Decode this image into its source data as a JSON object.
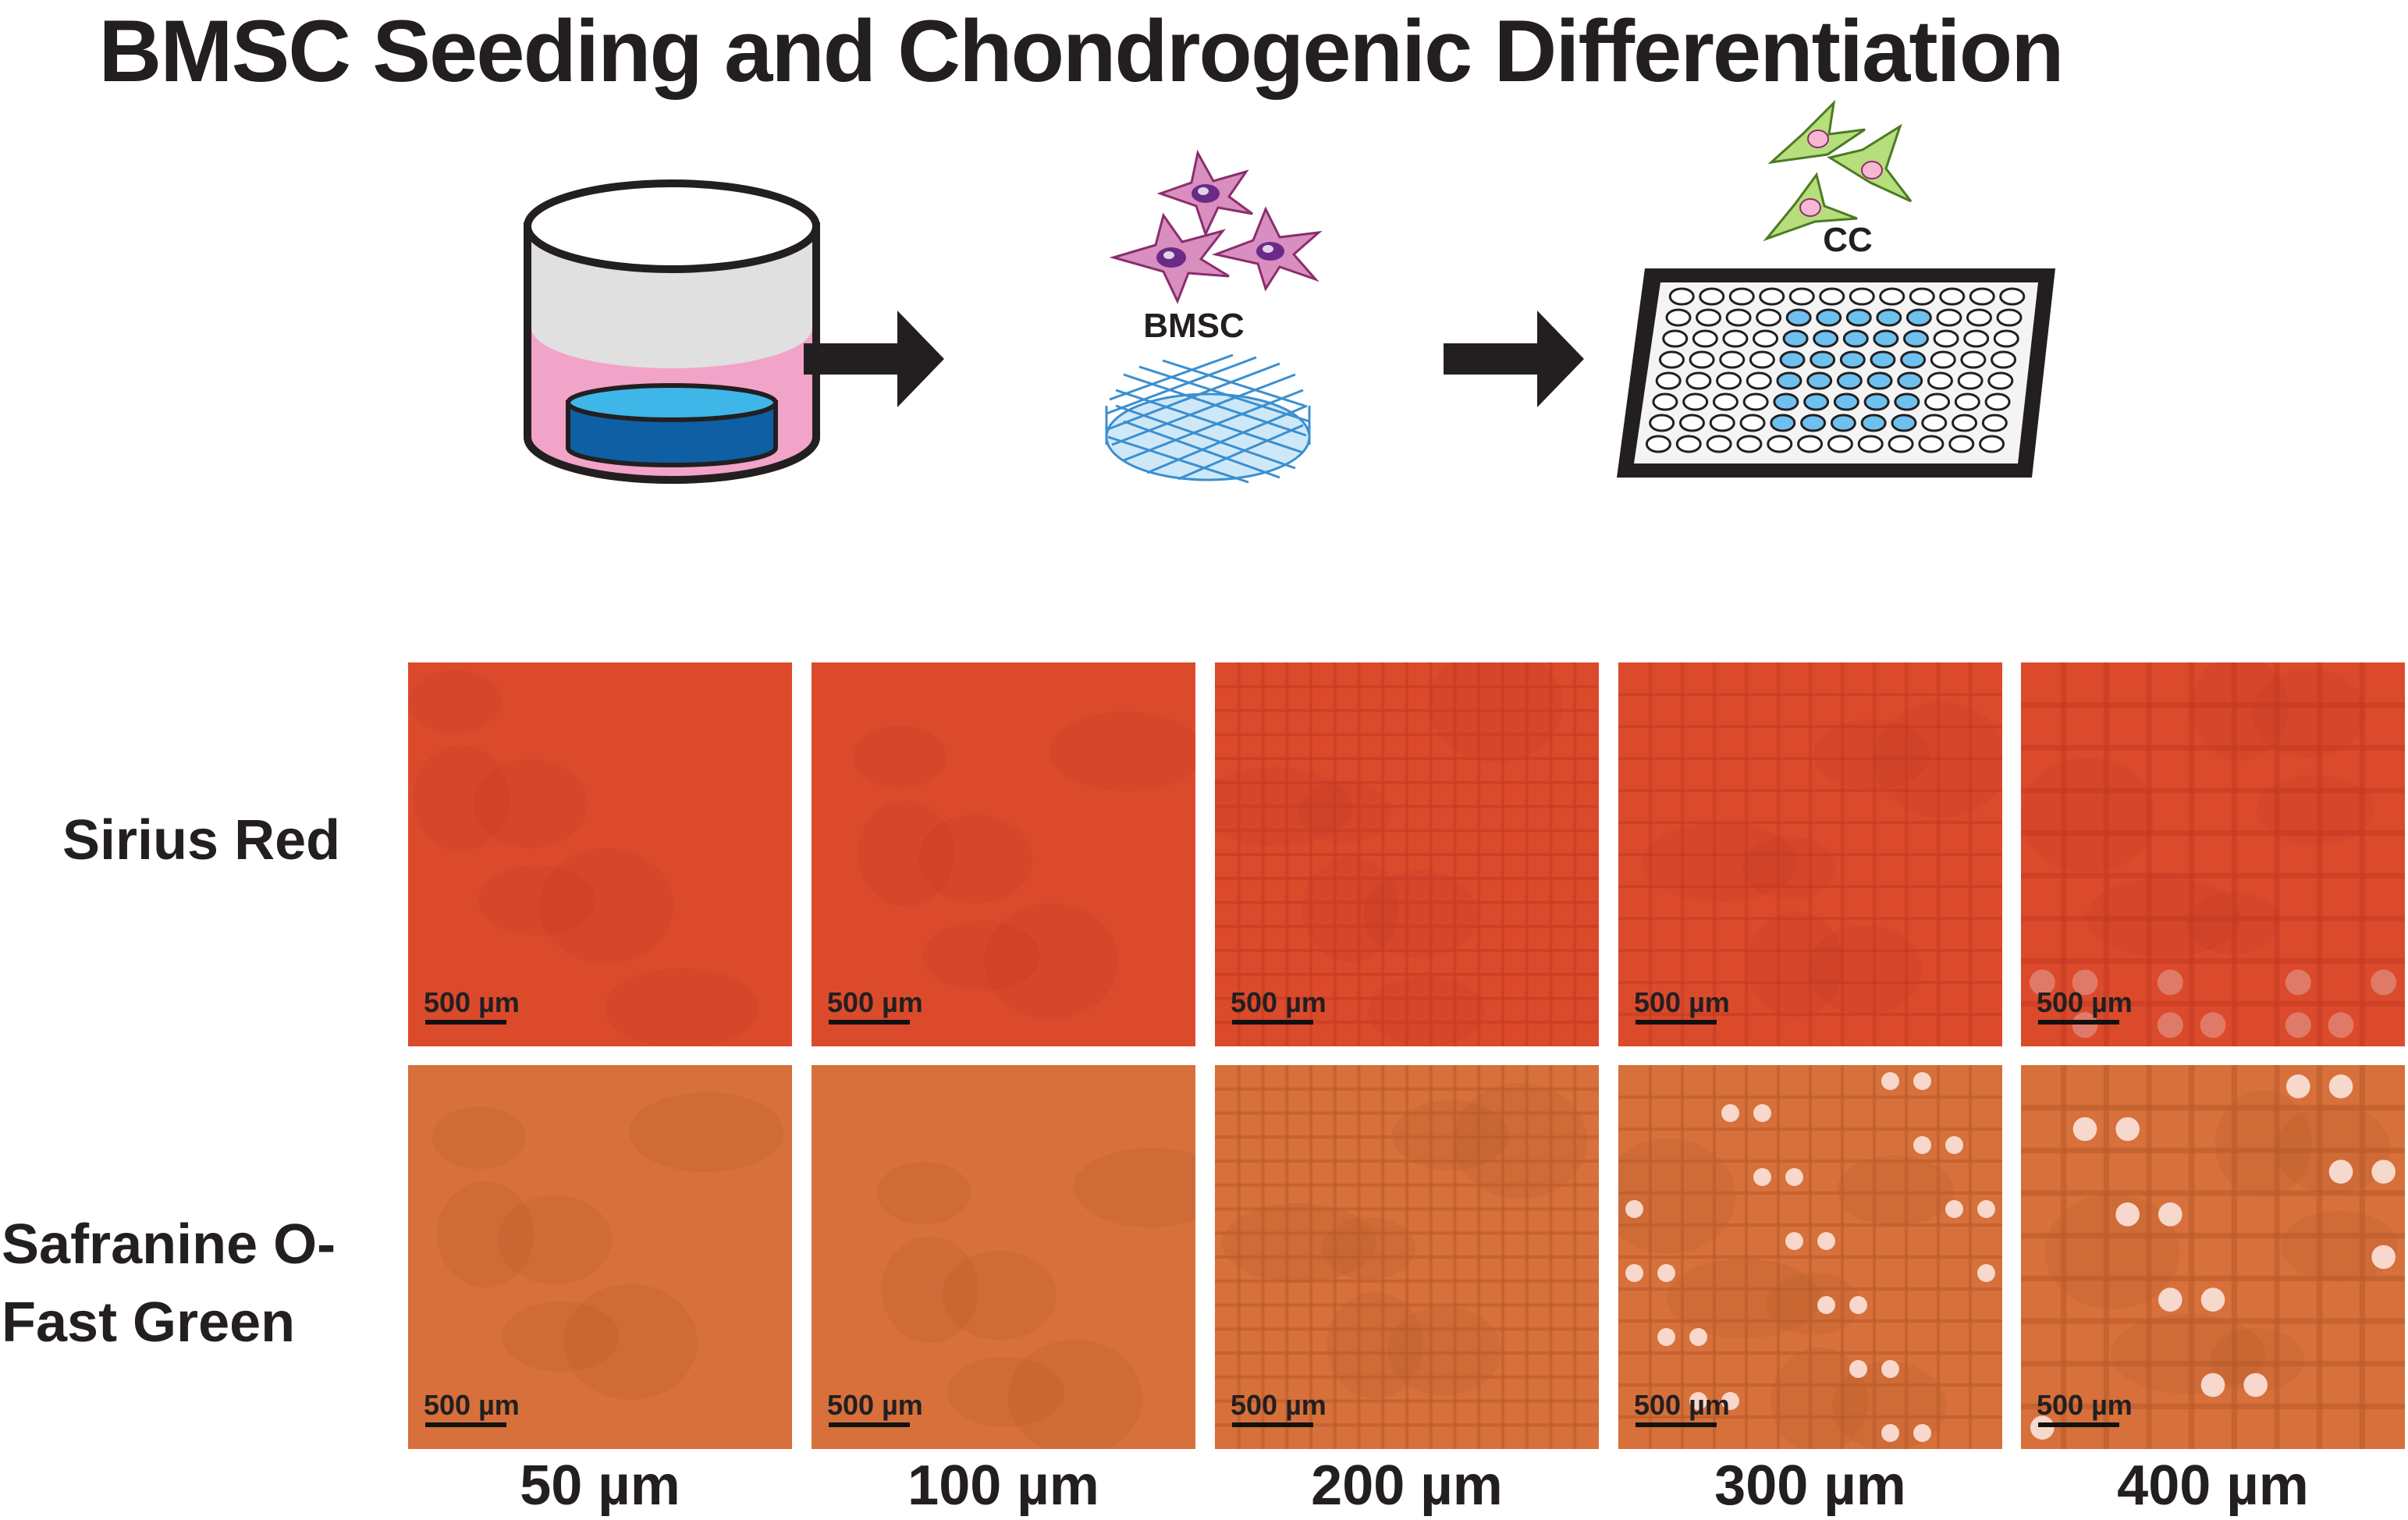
{
  "title": "BMSC Seeding and Chondrogenic Differentiation",
  "schematic": {
    "bmsc_label": "BMSC",
    "cc_label": "CC"
  },
  "rows": [
    {
      "label": "Sirius Red"
    },
    {
      "label_line1": "Safranine O-",
      "label_line2": "Fast Green"
    }
  ],
  "scale_bar_label": "500 µm",
  "columns": [
    "50 µm",
    "100 µm",
    "200 µm",
    "300 µm",
    "400 µm"
  ],
  "colors": {
    "sirius_red": "#dc4a2c",
    "safranin": "#d7703a",
    "medium_pink": "#efa3c7",
    "scaffold_blue": "#3a8fd0",
    "cell_pink": "#c05a98",
    "cell_green": "#a9d36a",
    "arrow": "#231f20"
  }
}
